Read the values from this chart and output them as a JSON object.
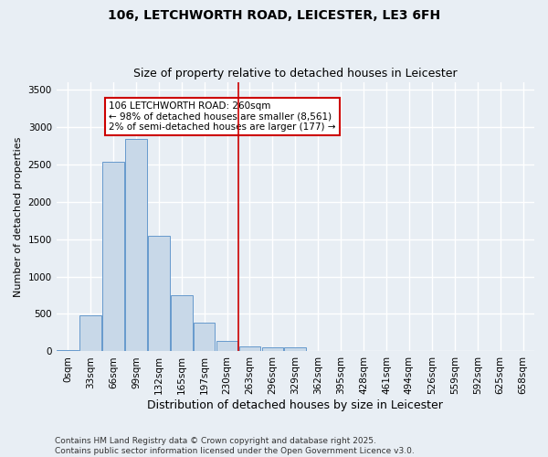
{
  "title_line1": "106, LETCHWORTH ROAD, LEICESTER, LE3 6FH",
  "title_line2": "Size of property relative to detached houses in Leicester",
  "xlabel": "Distribution of detached houses by size in Leicester",
  "ylabel": "Number of detached properties",
  "bin_labels": [
    "0sqm",
    "33sqm",
    "66sqm",
    "99sqm",
    "132sqm",
    "165sqm",
    "197sqm",
    "230sqm",
    "263sqm",
    "296sqm",
    "329sqm",
    "362sqm",
    "395sqm",
    "428sqm",
    "461sqm",
    "494sqm",
    "526sqm",
    "559sqm",
    "592sqm",
    "625sqm",
    "658sqm"
  ],
  "bar_values": [
    20,
    480,
    2530,
    2840,
    1540,
    750,
    390,
    140,
    70,
    50,
    50,
    0,
    0,
    0,
    0,
    0,
    0,
    0,
    0,
    0,
    0
  ],
  "bar_color": "#c8d8e8",
  "bar_edge_color": "#6699cc",
  "vline_x_index": 8,
  "vline_color": "#cc0000",
  "annotation_text": "106 LETCHWORTH ROAD: 260sqm\n← 98% of detached houses are smaller (8,561)\n2% of semi-detached houses are larger (177) →",
  "annotation_box_color": "#ffffff",
  "annotation_box_edge_color": "#cc0000",
  "ylim": [
    0,
    3600
  ],
  "yticks": [
    0,
    500,
    1000,
    1500,
    2000,
    2500,
    3000,
    3500
  ],
  "bg_color": "#e8eef4",
  "grid_color": "#ffffff",
  "footer_line1": "Contains HM Land Registry data © Crown copyright and database right 2025.",
  "footer_line2": "Contains public sector information licensed under the Open Government Licence v3.0.",
  "title_fontsize": 10,
  "subtitle_fontsize": 9,
  "ylabel_fontsize": 8,
  "xlabel_fontsize": 9,
  "tick_fontsize": 7.5,
  "annot_fontsize": 7.5,
  "footer_fontsize": 6.5
}
